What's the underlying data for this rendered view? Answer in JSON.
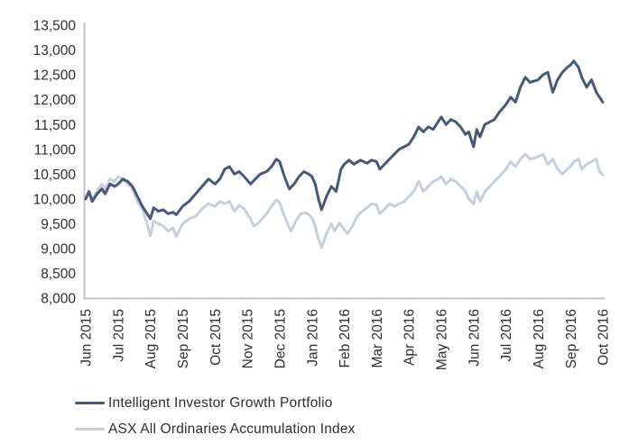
{
  "chart_data": {
    "type": "line",
    "title": "",
    "xlabel": "",
    "ylabel": "",
    "grid": false,
    "legend_position": "bottom-left",
    "x_axis": {
      "labels": [
        "Jun 2015",
        "Jul 2015",
        "Aug 2015",
        "Sep 2015",
        "Oct 2015",
        "Nov 2015",
        "Dec 2015",
        "Jan 2016",
        "Feb 2016",
        "Mar 2016",
        "Apr 2016",
        "May 2016",
        "Jun 2016",
        "Jul 2016",
        "Aug 2016",
        "Sep 2016",
        "Oct 2016"
      ],
      "label_rotation_deg": 90
    },
    "y_axis": {
      "min": 8000,
      "max": 13500,
      "tick_step": 500,
      "tick_labels": [
        "13,500",
        "13,000",
        "12,500",
        "12,000",
        "11,500",
        "11,000",
        "10,500",
        "10,000",
        "9,500",
        "9,000",
        "8,500",
        "8,000"
      ]
    },
    "legend": [
      {
        "label": "Intelligent Investor Growth Portfolio",
        "color": "#46597b"
      },
      {
        "label": "ASX All Ordinaries Accumulation Index",
        "color": "#c7cfda"
      }
    ],
    "series": [
      {
        "name": "Intelligent Investor Growth Portfolio",
        "color": "#46597b",
        "points": [
          [
            0.0,
            10000
          ],
          [
            0.1,
            10150
          ],
          [
            0.2,
            9950
          ],
          [
            0.35,
            10100
          ],
          [
            0.5,
            10200
          ],
          [
            0.6,
            10100
          ],
          [
            0.75,
            10300
          ],
          [
            0.9,
            10250
          ],
          [
            1.0,
            10300
          ],
          [
            1.15,
            10400
          ],
          [
            1.3,
            10350
          ],
          [
            1.45,
            10250
          ],
          [
            1.6,
            10050
          ],
          [
            1.75,
            9850
          ],
          [
            1.9,
            9700
          ],
          [
            2.0,
            9600
          ],
          [
            2.1,
            9820
          ],
          [
            2.25,
            9750
          ],
          [
            2.4,
            9780
          ],
          [
            2.55,
            9700
          ],
          [
            2.7,
            9730
          ],
          [
            2.8,
            9680
          ],
          [
            3.0,
            9850
          ],
          [
            3.2,
            9950
          ],
          [
            3.4,
            10100
          ],
          [
            3.6,
            10250
          ],
          [
            3.8,
            10400
          ],
          [
            4.0,
            10300
          ],
          [
            4.15,
            10400
          ],
          [
            4.3,
            10600
          ],
          [
            4.45,
            10650
          ],
          [
            4.6,
            10500
          ],
          [
            4.75,
            10550
          ],
          [
            4.9,
            10450
          ],
          [
            5.1,
            10300
          ],
          [
            5.25,
            10400
          ],
          [
            5.4,
            10500
          ],
          [
            5.6,
            10550
          ],
          [
            5.75,
            10650
          ],
          [
            5.9,
            10800
          ],
          [
            6.0,
            10750
          ],
          [
            6.15,
            10450
          ],
          [
            6.3,
            10200
          ],
          [
            6.45,
            10300
          ],
          [
            6.6,
            10450
          ],
          [
            6.75,
            10550
          ],
          [
            6.9,
            10500
          ],
          [
            7.0,
            10450
          ],
          [
            7.1,
            10300
          ],
          [
            7.2,
            10000
          ],
          [
            7.3,
            9780
          ],
          [
            7.45,
            10050
          ],
          [
            7.6,
            10250
          ],
          [
            7.75,
            10150
          ],
          [
            7.9,
            10600
          ],
          [
            8.0,
            10700
          ],
          [
            8.15,
            10780
          ],
          [
            8.3,
            10700
          ],
          [
            8.5,
            10780
          ],
          [
            8.7,
            10720
          ],
          [
            8.85,
            10780
          ],
          [
            9.0,
            10750
          ],
          [
            9.1,
            10600
          ],
          [
            9.25,
            10700
          ],
          [
            9.4,
            10800
          ],
          [
            9.55,
            10900
          ],
          [
            9.7,
            11000
          ],
          [
            9.85,
            11050
          ],
          [
            10.0,
            11100
          ],
          [
            10.15,
            11250
          ],
          [
            10.3,
            11450
          ],
          [
            10.45,
            11350
          ],
          [
            10.6,
            11450
          ],
          [
            10.75,
            11400
          ],
          [
            10.9,
            11550
          ],
          [
            11.0,
            11650
          ],
          [
            11.15,
            11500
          ],
          [
            11.3,
            11600
          ],
          [
            11.45,
            11550
          ],
          [
            11.6,
            11450
          ],
          [
            11.75,
            11300
          ],
          [
            11.85,
            11350
          ],
          [
            12.0,
            11050
          ],
          [
            12.1,
            11400
          ],
          [
            12.2,
            11250
          ],
          [
            12.35,
            11500
          ],
          [
            12.5,
            11550
          ],
          [
            12.65,
            11600
          ],
          [
            12.8,
            11750
          ],
          [
            13.0,
            11900
          ],
          [
            13.15,
            12050
          ],
          [
            13.3,
            11950
          ],
          [
            13.45,
            12250
          ],
          [
            13.6,
            12450
          ],
          [
            13.75,
            12350
          ],
          [
            14.0,
            12400
          ],
          [
            14.15,
            12500
          ],
          [
            14.3,
            12550
          ],
          [
            14.45,
            12150
          ],
          [
            14.6,
            12400
          ],
          [
            14.75,
            12550
          ],
          [
            14.9,
            12650
          ],
          [
            15.0,
            12700
          ],
          [
            15.1,
            12780
          ],
          [
            15.25,
            12650
          ],
          [
            15.35,
            12450
          ],
          [
            15.5,
            12250
          ],
          [
            15.65,
            12400
          ],
          [
            15.8,
            12150
          ],
          [
            15.9,
            12050
          ],
          [
            16.0,
            11950
          ]
        ]
      },
      {
        "name": "ASX All Ordinaries Accumulation Index",
        "color": "#c7cfda",
        "points": [
          [
            0.0,
            10000
          ],
          [
            0.1,
            10150
          ],
          [
            0.2,
            9980
          ],
          [
            0.35,
            10150
          ],
          [
            0.5,
            10300
          ],
          [
            0.6,
            10200
          ],
          [
            0.75,
            10400
          ],
          [
            0.9,
            10350
          ],
          [
            1.0,
            10450
          ],
          [
            1.15,
            10400
          ],
          [
            1.3,
            10300
          ],
          [
            1.45,
            10200
          ],
          [
            1.6,
            9950
          ],
          [
            1.75,
            9800
          ],
          [
            1.9,
            9500
          ],
          [
            2.0,
            9250
          ],
          [
            2.1,
            9550
          ],
          [
            2.25,
            9500
          ],
          [
            2.4,
            9450
          ],
          [
            2.55,
            9350
          ],
          [
            2.7,
            9420
          ],
          [
            2.8,
            9240
          ],
          [
            3.0,
            9500
          ],
          [
            3.2,
            9600
          ],
          [
            3.4,
            9650
          ],
          [
            3.6,
            9800
          ],
          [
            3.8,
            9900
          ],
          [
            4.0,
            9850
          ],
          [
            4.15,
            9950
          ],
          [
            4.3,
            9900
          ],
          [
            4.45,
            9950
          ],
          [
            4.6,
            9750
          ],
          [
            4.75,
            9870
          ],
          [
            4.9,
            9800
          ],
          [
            5.1,
            9600
          ],
          [
            5.2,
            9450
          ],
          [
            5.35,
            9520
          ],
          [
            5.6,
            9700
          ],
          [
            5.75,
            9850
          ],
          [
            5.9,
            9980
          ],
          [
            6.0,
            9930
          ],
          [
            6.15,
            9650
          ],
          [
            6.35,
            9350
          ],
          [
            6.5,
            9550
          ],
          [
            6.65,
            9700
          ],
          [
            6.8,
            9720
          ],
          [
            6.9,
            9680
          ],
          [
            7.0,
            9620
          ],
          [
            7.1,
            9450
          ],
          [
            7.2,
            9200
          ],
          [
            7.3,
            9020
          ],
          [
            7.45,
            9300
          ],
          [
            7.6,
            9500
          ],
          [
            7.7,
            9350
          ],
          [
            7.85,
            9520
          ],
          [
            8.0,
            9380
          ],
          [
            8.1,
            9300
          ],
          [
            8.25,
            9450
          ],
          [
            8.4,
            9650
          ],
          [
            8.55,
            9750
          ],
          [
            8.7,
            9820
          ],
          [
            8.85,
            9900
          ],
          [
            9.0,
            9880
          ],
          [
            9.1,
            9700
          ],
          [
            9.25,
            9800
          ],
          [
            9.4,
            9900
          ],
          [
            9.55,
            9850
          ],
          [
            9.7,
            9900
          ],
          [
            9.85,
            9950
          ],
          [
            10.0,
            10050
          ],
          [
            10.15,
            10150
          ],
          [
            10.3,
            10350
          ],
          [
            10.45,
            10150
          ],
          [
            10.6,
            10250
          ],
          [
            10.75,
            10350
          ],
          [
            10.9,
            10400
          ],
          [
            11.0,
            10450
          ],
          [
            11.15,
            10300
          ],
          [
            11.3,
            10400
          ],
          [
            11.45,
            10350
          ],
          [
            11.6,
            10250
          ],
          [
            11.75,
            10150
          ],
          [
            11.85,
            10000
          ],
          [
            12.0,
            9900
          ],
          [
            12.1,
            10150
          ],
          [
            12.2,
            9950
          ],
          [
            12.35,
            10150
          ],
          [
            12.5,
            10250
          ],
          [
            12.65,
            10350
          ],
          [
            12.8,
            10450
          ],
          [
            13.0,
            10600
          ],
          [
            13.15,
            10750
          ],
          [
            13.3,
            10650
          ],
          [
            13.45,
            10800
          ],
          [
            13.6,
            10900
          ],
          [
            13.75,
            10800
          ],
          [
            14.0,
            10850
          ],
          [
            14.15,
            10900
          ],
          [
            14.3,
            10700
          ],
          [
            14.45,
            10800
          ],
          [
            14.6,
            10600
          ],
          [
            14.75,
            10500
          ],
          [
            14.9,
            10600
          ],
          [
            15.0,
            10650
          ],
          [
            15.1,
            10750
          ],
          [
            15.25,
            10800
          ],
          [
            15.35,
            10600
          ],
          [
            15.5,
            10700
          ],
          [
            15.65,
            10750
          ],
          [
            15.8,
            10800
          ],
          [
            15.9,
            10550
          ],
          [
            16.0,
            10480
          ]
        ]
      }
    ]
  },
  "colors": {
    "background": "#ffffff",
    "axis_line": "#c4c4c4",
    "tick_text": "#2e2e2e",
    "portfolio_line": "#46597b",
    "index_line": "#c7cfda"
  }
}
